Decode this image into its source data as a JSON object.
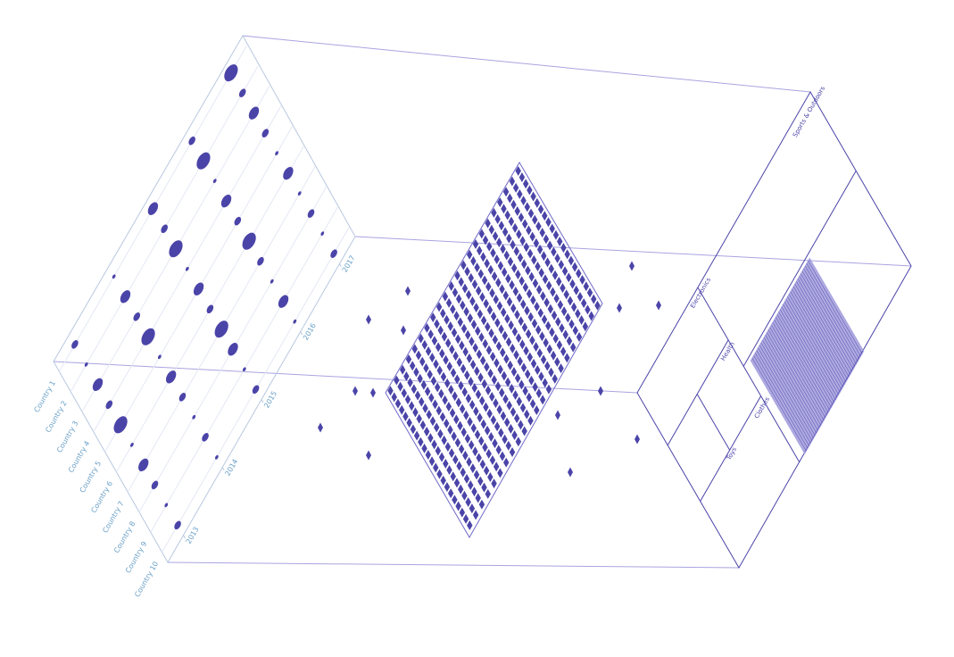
{
  "chart_data": {
    "type": "dot-matrix",
    "categories": [
      "Country 1",
      "Country 2",
      "Country 3",
      "Country 4",
      "Country 5",
      "Country 6",
      "Country 7",
      "Country 8",
      "Country 9",
      "Country 10"
    ],
    "x": [
      2013,
      2014,
      2015,
      2016,
      2017
    ],
    "xticks": [
      2013,
      2014,
      2015,
      2016,
      2017
    ],
    "xlim": [
      2012.6,
      2017.4
    ],
    "color": "#4b44a8",
    "values": [
      [
        2,
        1,
        3,
        2,
        4
      ],
      [
        1,
        3,
        2,
        4,
        2
      ],
      [
        3,
        2,
        4,
        1,
        3
      ],
      [
        2,
        4,
        1,
        3,
        2
      ],
      [
        4,
        1,
        3,
        2,
        1
      ],
      [
        1,
        3,
        2,
        4,
        3
      ],
      [
        3,
        2,
        4,
        2,
        1
      ],
      [
        2,
        1,
        3,
        1,
        2
      ],
      [
        1,
        2,
        1,
        3,
        1
      ],
      [
        2,
        1,
        2,
        1,
        2
      ]
    ]
  },
  "treemap": {
    "labels": [
      "Electronics",
      "Health",
      "Sports & Outdoors",
      "Toys",
      "Clothes"
    ]
  }
}
